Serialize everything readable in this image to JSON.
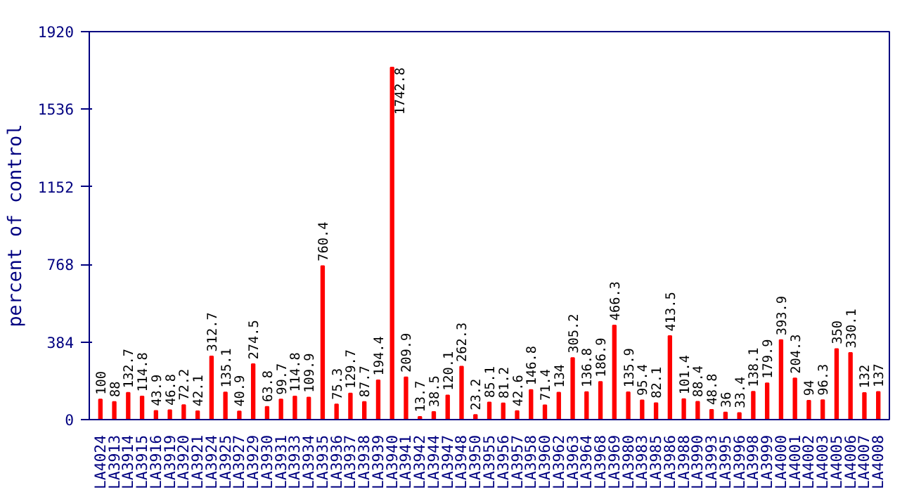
{
  "chart_data": {
    "type": "bar",
    "ylabel": "percent of control",
    "categories": [
      "LA4024",
      "LA3913",
      "LA3914",
      "LA3915",
      "LA3916",
      "LA3919",
      "LA3920",
      "LA3921",
      "LA3924",
      "LA3925",
      "LA3927",
      "LA3929",
      "LA3930",
      "LA3931",
      "LA3933",
      "LA3934",
      "LA3935",
      "LA3936",
      "LA3937",
      "LA3938",
      "LA3939",
      "LA3940",
      "LA3941",
      "LA3942",
      "LA3944",
      "LA3947",
      "LA3948",
      "LA3950",
      "LA3955",
      "LA3956",
      "LA3957",
      "LA3958",
      "LA3960",
      "LA3962",
      "LA3963",
      "LA3964",
      "LA3968",
      "LA3969",
      "LA3980",
      "LA3983",
      "LA3985",
      "LA3986",
      "LA3988",
      "LA3990",
      "LA3993",
      "LA3995",
      "LA3996",
      "LA3998",
      "LA3999",
      "LA4000",
      "LA4001",
      "LA4002",
      "LA4003",
      "LA4005",
      "LA4006",
      "LA4007",
      "LA4008"
    ],
    "values": [
      100,
      88,
      132.7,
      114.8,
      43.9,
      46.8,
      72.2,
      42.1,
      312.7,
      135.1,
      40.9,
      274.5,
      63.8,
      99.7,
      114.8,
      109.9,
      760.4,
      75.3,
      129.7,
      87.7,
      194.4,
      1742.8,
      209.9,
      13.7,
      38.5,
      120.1,
      262.3,
      23.2,
      85.1,
      81.2,
      42.6,
      146.8,
      71.4,
      134,
      305.2,
      136.8,
      186.9,
      466.3,
      135.9,
      95.4,
      82.1,
      413.5,
      101.4,
      88.4,
      48.8,
      36,
      33.4,
      138.1,
      179.9,
      393.9,
      204.3,
      94,
      96.3,
      350,
      330.1,
      132,
      137
    ],
    "color": "#ff0000",
    "data_labels": true,
    "grid": false,
    "ylim": [
      0,
      1920
    ],
    "yticks": [
      0,
      384,
      768,
      1152,
      1536,
      1920
    ]
  }
}
